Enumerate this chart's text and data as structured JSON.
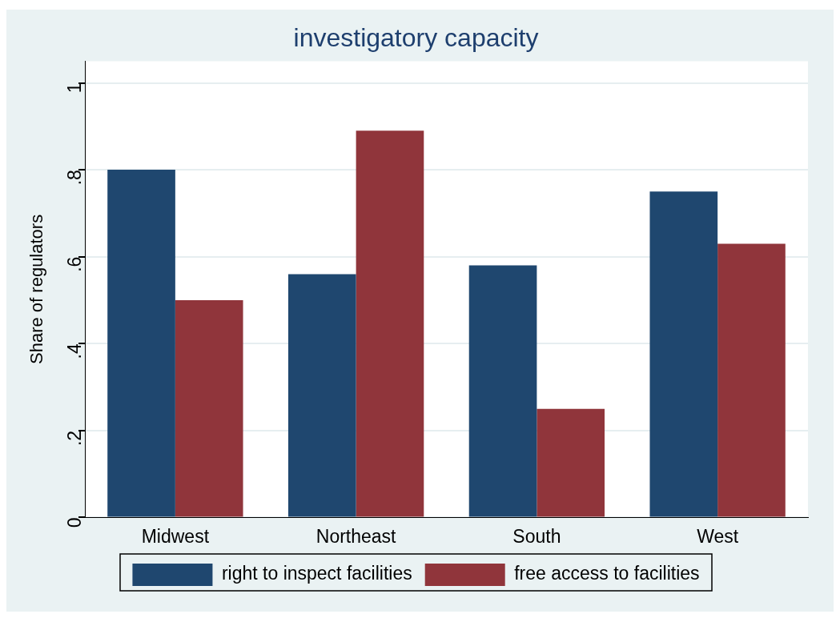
{
  "chart_data": {
    "type": "bar",
    "title": "investigatory capacity",
    "ylabel": "Share of regulators",
    "categories": [
      "Midwest",
      "Northeast",
      "South",
      "West"
    ],
    "series": [
      {
        "name": "right to inspect facilities",
        "color": "#1f476f",
        "values": [
          0.8,
          0.56,
          0.58,
          0.75
        ]
      },
      {
        "name": "free access to facilities",
        "color": "#90353b",
        "values": [
          0.5,
          0.89,
          0.25,
          0.63
        ]
      }
    ],
    "ylim": [
      0,
      1.05
    ],
    "yticks": [
      {
        "value": 0,
        "label": "0"
      },
      {
        "value": 0.2,
        "label": ".2"
      },
      {
        "value": 0.4,
        "label": ".4"
      },
      {
        "value": 0.6,
        "label": ".6"
      },
      {
        "value": 0.8,
        "label": ".8"
      },
      {
        "value": 1,
        "label": "1"
      }
    ],
    "grid": "y",
    "legend": "bottom"
  }
}
